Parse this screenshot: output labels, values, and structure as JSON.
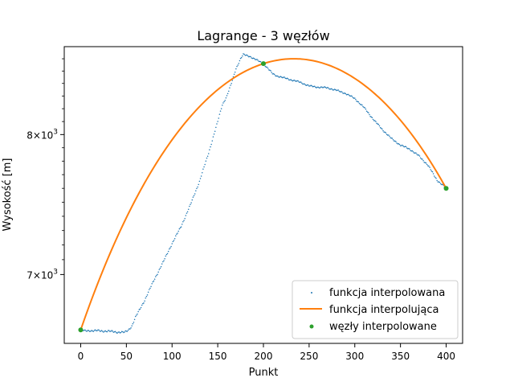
{
  "chart_data": {
    "type": "line",
    "title": "Lagrange - 3 węzłów",
    "xlabel": "Punkt",
    "ylabel": "Wysokość [m]",
    "xlim": [
      -18,
      418
    ],
    "ylim": [
      6555,
      8700
    ],
    "yscale": "log",
    "grid": false,
    "legend_position": "lower-right",
    "x_ticks": [
      0,
      50,
      100,
      150,
      200,
      250,
      300,
      350,
      400
    ],
    "x_tick_labels": [
      "0",
      "50",
      "100",
      "150",
      "200",
      "250",
      "300",
      "350",
      "400"
    ],
    "y_ticks": [
      7000,
      8000
    ],
    "y_tick_labels": [
      {
        "base": "7",
        "sep": "×",
        "pow": "10",
        "exp": "3"
      },
      {
        "base": "8",
        "sep": "×",
        "pow": "10",
        "exp": "3"
      }
    ],
    "legend": [
      {
        "label": "funkcja interpolowana",
        "kind": "dot",
        "color": "#1f77b4"
      },
      {
        "label": "funkcja interpolująca",
        "kind": "line",
        "color": "#ff7f0e"
      },
      {
        "label": "węzły interpolowane",
        "kind": "marker",
        "color": "#2ca02c"
      }
    ],
    "series": [
      {
        "name": "funkcja interpolowana",
        "style": "dots",
        "color": "#1f77b4",
        "keypoints": [
          [
            0,
            6640
          ],
          [
            5,
            6633
          ],
          [
            10,
            6636
          ],
          [
            20,
            6634
          ],
          [
            30,
            6632
          ],
          [
            40,
            6626
          ],
          [
            48,
            6624
          ],
          [
            52,
            6638
          ],
          [
            56,
            6665
          ],
          [
            60,
            6720
          ],
          [
            70,
            6830
          ],
          [
            80,
            6960
          ],
          [
            90,
            7080
          ],
          [
            100,
            7210
          ],
          [
            110,
            7330
          ],
          [
            120,
            7480
          ],
          [
            130,
            7650
          ],
          [
            140,
            7860
          ],
          [
            150,
            8100
          ],
          [
            155,
            8230
          ],
          [
            160,
            8300
          ],
          [
            165,
            8400
          ],
          [
            170,
            8520
          ],
          [
            175,
            8600
          ],
          [
            178,
            8635
          ],
          [
            180,
            8630
          ],
          [
            185,
            8620
          ],
          [
            190,
            8600
          ],
          [
            195,
            8580
          ],
          [
            200,
            8560
          ],
          [
            205,
            8520
          ],
          [
            210,
            8478
          ],
          [
            215,
            8460
          ],
          [
            220,
            8450
          ],
          [
            230,
            8430
          ],
          [
            240,
            8410
          ],
          [
            250,
            8380
          ],
          [
            260,
            8370
          ],
          [
            270,
            8365
          ],
          [
            280,
            8345
          ],
          [
            290,
            8320
          ],
          [
            300,
            8280
          ],
          [
            310,
            8210
          ],
          [
            320,
            8120
          ],
          [
            330,
            8040
          ],
          [
            340,
            7970
          ],
          [
            350,
            7920
          ],
          [
            360,
            7890
          ],
          [
            370,
            7840
          ],
          [
            380,
            7770
          ],
          [
            390,
            7660
          ],
          [
            400,
            7600
          ]
        ]
      },
      {
        "name": "funkcja interpolująca",
        "style": "line",
        "color": "#ff7f0e",
        "nodes_x": [
          0,
          200,
          400
        ],
        "nodes_y": [
          6640,
          8560,
          7600
        ]
      },
      {
        "name": "węzły interpolowane",
        "style": "markers",
        "color": "#2ca02c",
        "x": [
          0,
          200,
          400
        ],
        "y": [
          6640,
          8560,
          7600
        ]
      }
    ]
  }
}
